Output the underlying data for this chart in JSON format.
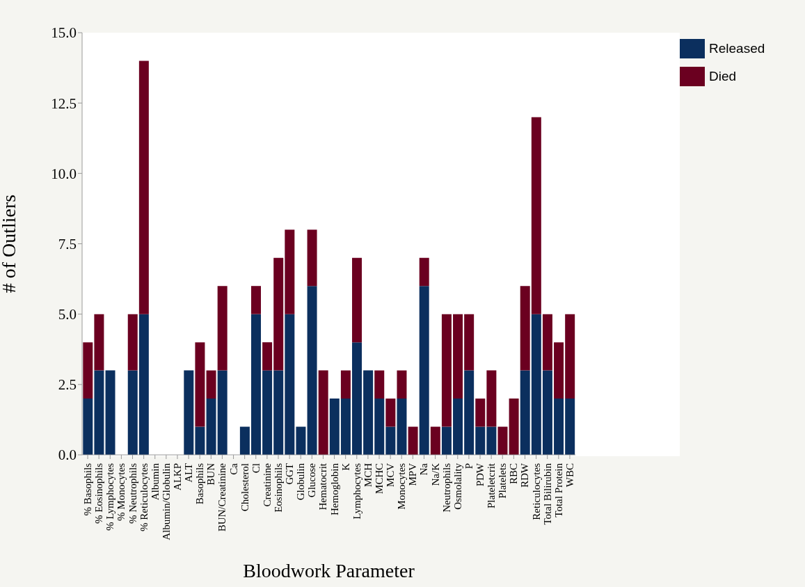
{
  "chart_data": {
    "type": "bar",
    "stacked": true,
    "xlabel": "Bloodwork Parameter",
    "ylabel": "# of Outliers",
    "categories": [
      "% Basophils",
      "% Eosinophils",
      "% Lymphocytes",
      "% Monocytes",
      "% Neutrophils",
      "% Reticulocytes",
      "Albumin",
      "Albumin/Globulin",
      "ALKP",
      "ALT",
      "Basophils",
      "BUN",
      "BUN/Creatinine",
      "Ca",
      "Cholesterol",
      "Cl",
      "Creatinine",
      "Eosinophils",
      "GGT",
      "Globulin",
      "Glucose",
      "Hematocrit",
      "Hemoglobin",
      "K",
      "Lymphocytes",
      "MCH",
      "MCHC",
      "MCV",
      "Monocytes",
      "MPV",
      "Na",
      "Na/K",
      "Neutrophils",
      "Osmolality",
      "P",
      "PDW",
      "Plateletcrit",
      "Platelets",
      "RBC",
      "RDW",
      "Reticulocytes",
      "Total Bilirubin",
      "Total Protein",
      "WBC"
    ],
    "series": [
      {
        "name": "Released",
        "color": "#0b2f5e",
        "values": [
          2,
          3,
          3,
          0,
          3,
          5,
          0,
          0,
          0,
          3,
          1,
          2,
          3,
          0,
          1,
          5,
          3,
          3,
          5,
          1,
          6,
          0,
          2,
          2,
          4,
          3,
          2,
          1,
          2,
          0,
          6,
          0,
          1,
          2,
          3,
          1,
          1,
          0,
          0,
          3,
          5,
          3,
          2,
          2
        ]
      },
      {
        "name": "Died",
        "color": "#6b0020",
        "values": [
          2,
          2,
          0,
          0,
          2,
          9,
          0,
          0,
          0,
          0,
          3,
          1,
          3,
          0,
          0,
          1,
          1,
          4,
          3,
          0,
          2,
          3,
          0,
          1,
          3,
          0,
          1,
          1,
          1,
          1,
          1,
          1,
          4,
          3,
          2,
          1,
          2,
          1,
          2,
          3,
          7,
          2,
          2,
          3
        ]
      }
    ],
    "ylim": [
      0,
      15
    ],
    "yticks": [
      {
        "value": 0,
        "label": "0.0"
      },
      {
        "value": 2.5,
        "label": "2.5"
      },
      {
        "value": 5,
        "label": "5.0"
      },
      {
        "value": 7.5,
        "label": "7.5"
      },
      {
        "value": 10,
        "label": "10.0"
      },
      {
        "value": 12.5,
        "label": "12.5"
      },
      {
        "value": 15,
        "label": "15.0"
      }
    ],
    "grid": false,
    "legend": "top right"
  }
}
